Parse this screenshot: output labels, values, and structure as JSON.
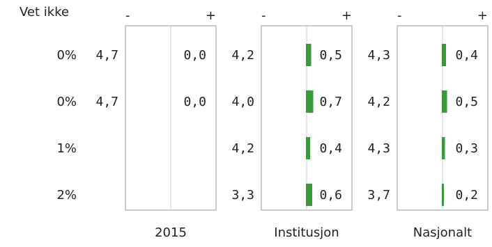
{
  "chart_data": {
    "type": "bar",
    "column_header": "Vet ikke",
    "scale_minus": "-",
    "scale_plus": "+",
    "rows": [
      {
        "vet_ikke": "0%"
      },
      {
        "vet_ikke": "0%"
      },
      {
        "vet_ikke": "1%"
      },
      {
        "vet_ikke": "2%"
      }
    ],
    "panels": [
      {
        "label": "2015",
        "means": [
          "4,7",
          "4,7",
          "",
          ""
        ],
        "sd_labels": [
          "0,0",
          "0,0",
          "",
          ""
        ],
        "sd": [
          0.0,
          0.0,
          null,
          null
        ]
      },
      {
        "label": "Institusjon",
        "means": [
          "4,2",
          "4,0",
          "4,2",
          "3,3"
        ],
        "sd_labels": [
          "0,5",
          "0,7",
          "0,4",
          "0,6"
        ],
        "sd": [
          0.5,
          0.7,
          0.4,
          0.6
        ]
      },
      {
        "label": "Nasjonalt",
        "means": [
          "4,3",
          "4,2",
          "4,3",
          "3,7"
        ],
        "sd_labels": [
          "0,4",
          "0,5",
          "0,3",
          "0,2"
        ],
        "sd": [
          0.4,
          0.5,
          0.3,
          0.2
        ]
      }
    ],
    "bar_color": "#3a9a3a",
    "box_color": "#999999",
    "center_line_color": "#c8cde0"
  }
}
